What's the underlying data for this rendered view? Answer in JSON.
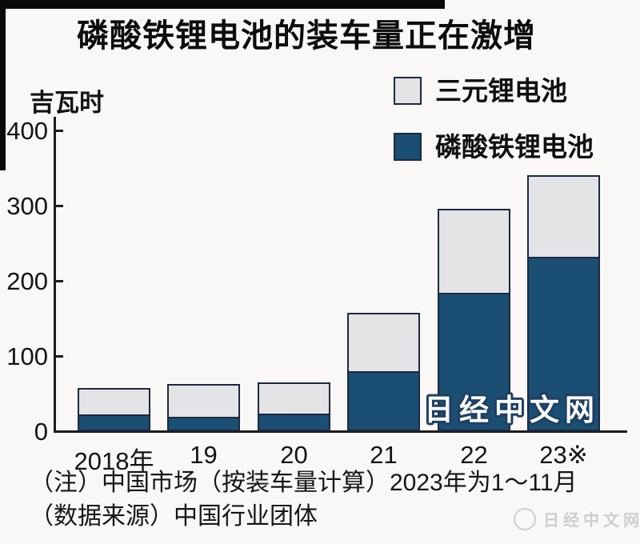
{
  "title": "磷酸铁锂电池的装车量正在激增",
  "unit_label": "吉瓦时",
  "chart_data": {
    "type": "bar",
    "stacked": true,
    "title": "磷酸铁锂电池的装车量正在激增",
    "ylabel": "吉瓦时",
    "xlabel": "",
    "categories": [
      "2018年",
      "19",
      "20",
      "21",
      "22",
      "23※"
    ],
    "series": [
      {
        "name": "磷酸铁锂电池",
        "color": "#1b4e73",
        "values": [
          22,
          20,
          24,
          80,
          184,
          232
        ]
      },
      {
        "name": "三元锂电池",
        "color": "#e4e3e6",
        "values": [
          33,
          41,
          39,
          75,
          110,
          106
        ]
      }
    ],
    "totals": [
      55,
      61,
      63,
      155,
      294,
      338
    ],
    "y_ticks": [
      0,
      100,
      200,
      300,
      400
    ],
    "ylim": [
      0,
      430
    ],
    "grid": false,
    "legend_position": "top-right",
    "bar_outline_color": "#1b2940",
    "axis_color": "#1c1c1c"
  },
  "legend": {
    "item1": "三元锂电池",
    "item2": "磷酸铁锂电池"
  },
  "watermarks": {
    "chart_text": "日经中文网",
    "corner_text": "日经中文网"
  },
  "notes": {
    "line1": "（注）中国市场（按装车量计算）2023年为1～11月",
    "line2": "（数据来源）中国行业团体"
  }
}
